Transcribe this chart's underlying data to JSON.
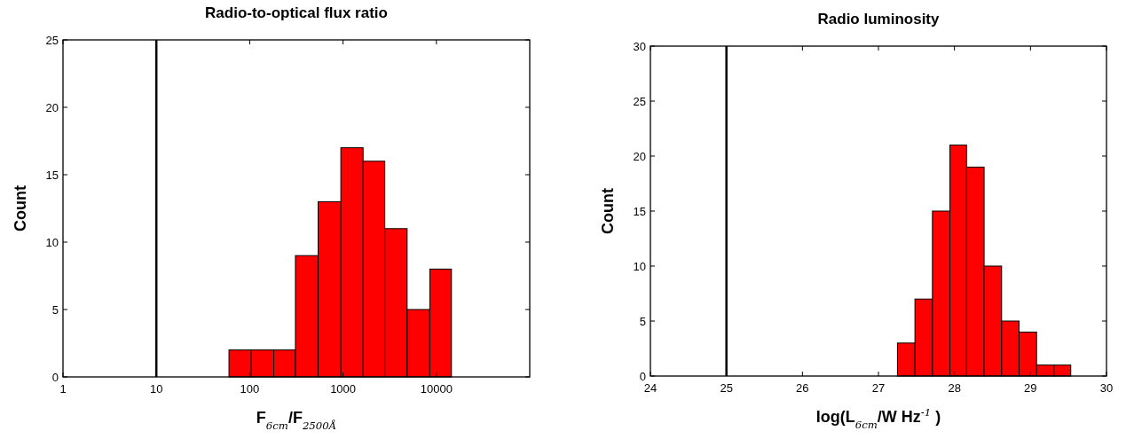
{
  "chart_data": [
    {
      "type": "histogram",
      "title": "Radio-to-optical flux ratio",
      "xlabel": "F$_{6cm}$/F$_{2500Å}$",
      "ylabel": "Count",
      "log": "x",
      "xlim": [
        1,
        100000
      ],
      "xticks": [
        1,
        10,
        100,
        1000,
        10000
      ],
      "ylim": [
        0,
        25
      ],
      "yticks": [
        0,
        5,
        10,
        15,
        20,
        25
      ],
      "grid": false,
      "color": "#ff0000",
      "bins": [
        60,
        104,
        181,
        309,
        541,
        947,
        1640,
        2800,
        4860,
        8500,
        14500
      ],
      "values": [
        2,
        2,
        2,
        9,
        13,
        17,
        16,
        11,
        5,
        8
      ],
      "ref_lines": [
        {
          "axis": "x",
          "value": 10,
          "color": "#000000"
        }
      ]
    },
    {
      "type": "histogram",
      "title": "Radio luminosity",
      "xlabel": "log(L$_{6cm}$/W Hz$^{-1}$ )",
      "ylabel": "Count",
      "xlim": [
        24,
        30
      ],
      "xticks": [
        24,
        25,
        26,
        27,
        28,
        29,
        30
      ],
      "ylim": [
        0,
        30
      ],
      "yticks": [
        0,
        5,
        10,
        15,
        20,
        25,
        30
      ],
      "grid": false,
      "color": "#ff0000",
      "bins": [
        27.25,
        27.48,
        27.71,
        27.94,
        28.16,
        28.39,
        28.62,
        28.85,
        29.08,
        29.31,
        29.53
      ],
      "values": [
        3,
        7,
        15,
        21,
        19,
        10,
        5,
        4,
        1,
        1
      ],
      "ref_lines": [
        {
          "axis": "x",
          "value": 25,
          "color": "#000000"
        }
      ]
    }
  ]
}
